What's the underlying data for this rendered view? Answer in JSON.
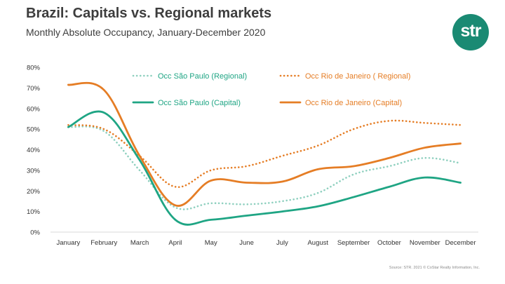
{
  "header": {
    "title": "Brazil: Capitals vs. Regional markets",
    "subtitle": "Monthly Absolute Occupancy, January-December 2020"
  },
  "logo": {
    "text": "str",
    "color": "#1a8a73"
  },
  "source": "Source: STR. 2021 © CoStar Realty Information, Inc.",
  "chart_data": {
    "type": "line",
    "title": "Brazil: Capitals vs. Regional markets",
    "subtitle": "Monthly Absolute Occupancy, January-December 2020",
    "categories": [
      "January",
      "February",
      "March",
      "April",
      "May",
      "June",
      "July",
      "August",
      "September",
      "October",
      "November",
      "December"
    ],
    "yticks": [
      "0%",
      "10%",
      "20%",
      "30%",
      "40%",
      "50%",
      "60%",
      "70%",
      "80%"
    ],
    "ylim": [
      0,
      80
    ],
    "grid": false,
    "legend_position": "top",
    "series": [
      {
        "name": "Occ São Paulo (Regional)",
        "color": "#8fd0bf",
        "style": "dotted",
        "values": [
          51,
          49,
          30,
          12,
          14,
          13.5,
          15,
          19,
          28,
          32,
          36,
          33.5
        ]
      },
      {
        "name": "Occ Rio de Janeiro ( Regional)",
        "color": "#e57d25",
        "style": "dotted",
        "values": [
          52,
          50,
          37,
          22,
          30,
          32,
          37,
          42,
          50,
          54,
          53,
          52
        ]
      },
      {
        "name": "Occ São Paulo (Capital)",
        "color": "#1fa584",
        "style": "solid",
        "values": [
          51,
          58,
          35,
          6,
          6,
          8,
          10,
          12.5,
          17,
          22,
          26.5,
          24
        ]
      },
      {
        "name": "Occ Rio de Janeiro (Capital)",
        "color": "#e57d25",
        "style": "solid",
        "values": [
          71.5,
          69,
          37,
          13,
          25,
          24,
          24.5,
          30.5,
          32,
          36,
          41,
          43
        ]
      }
    ]
  }
}
